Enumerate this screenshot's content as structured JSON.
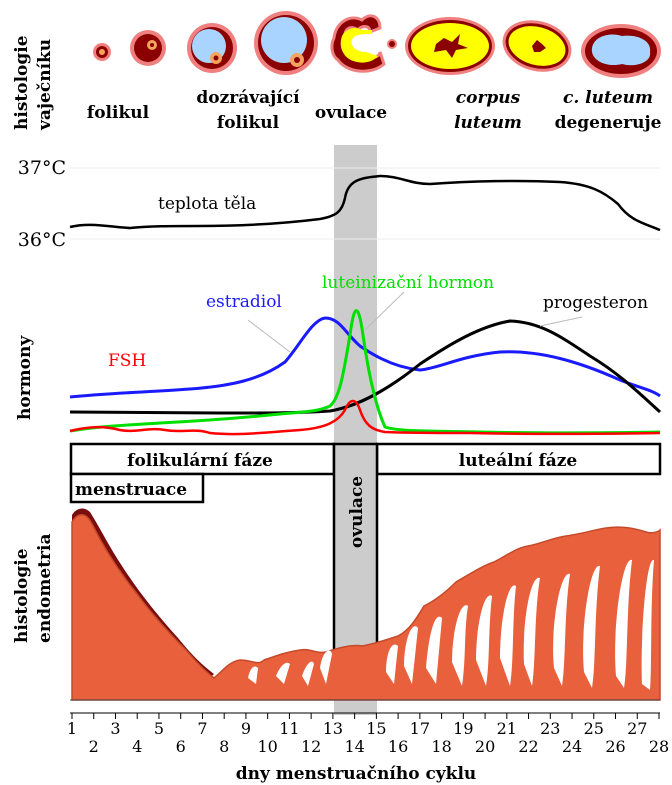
{
  "ovary_section": {
    "side_label_line1": "histologie",
    "side_label_line2": "vaječníku",
    "stages": [
      {
        "line1": "folikul",
        "line2": ""
      },
      {
        "line1": "dozrávající",
        "line2": "folikul"
      },
      {
        "line1": "ovulace",
        "line2": ""
      },
      {
        "line1": "corpus",
        "line2": "luteum"
      },
      {
        "line1": "c. luteum",
        "line2": "degeneruje"
      }
    ]
  },
  "temperature_section": {
    "label": "teplota těla",
    "ticks": [
      "37°C",
      "36°C"
    ]
  },
  "hormone_section": {
    "side_label": "hormony",
    "hormones": [
      {
        "name": "estradiol",
        "color": "#1a1aff"
      },
      {
        "name": "luteinizační hormon",
        "color": "#00e000"
      },
      {
        "name": "progesteron",
        "color": "#000000"
      },
      {
        "name": "FSH",
        "color": "#ff0000"
      }
    ]
  },
  "phases": {
    "follicular": "folikulární fáze",
    "luteal": "luteální fáze",
    "menstruation": "menstruace",
    "ovulation": "ovulace"
  },
  "endometrium_section": {
    "side_label_line1": "histologie",
    "side_label_line2": "endometria"
  },
  "x_axis": {
    "title": "dny menstruačního cyklu",
    "ticks": [
      "1",
      "2",
      "3",
      "4",
      "5",
      "6",
      "7",
      "8",
      "9",
      "10",
      "11",
      "12",
      "13",
      "14",
      "15",
      "16",
      "17",
      "18",
      "19",
      "20",
      "21",
      "22",
      "23",
      "24",
      "25",
      "26",
      "27",
      "28"
    ]
  },
  "colors": {
    "ovulation_band": "#cccccc",
    "endometrium": "#e8603c",
    "endometrium_dark": "#7a0d0d",
    "follicle_fluid": "#a8d4ff",
    "corpus_luteum": "#ffff00",
    "follicle_rim": "#8b0000",
    "follicle_halo": "#f08080"
  }
}
